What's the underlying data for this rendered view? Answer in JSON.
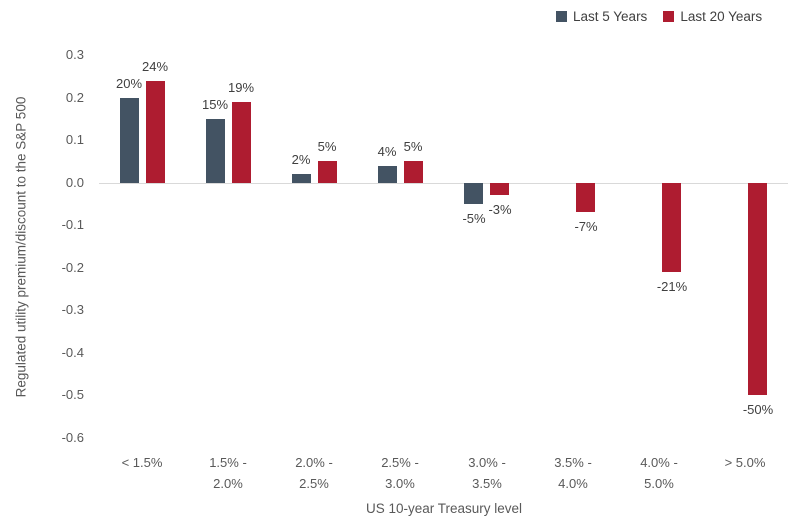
{
  "legend": {
    "items": [
      {
        "label": "Last 5 Years",
        "color": "#435363"
      },
      {
        "label": "Last 20 Years",
        "color": "#AE1C30"
      }
    ]
  },
  "y_axis": {
    "title": "Regulated utility premium/discount to the S&P 500",
    "tick_labels": [
      "0.3",
      "0.2",
      "0.1",
      "0.0",
      "-0.1",
      "-0.2",
      "-0.3",
      "-0.4",
      "-0.5",
      "-0.6"
    ]
  },
  "x_axis": {
    "title": "US 10-year Treasury level"
  },
  "colors": {
    "baseline": "#d9d9d9",
    "tick_text": "#595959",
    "data_label_text": "#404040"
  },
  "chart_data": {
    "type": "bar",
    "title": "",
    "xlabel": "US 10-year Treasury level",
    "ylabel": "Regulated utility premium/discount to the S&P 500",
    "ylim": [
      -0.6,
      0.3
    ],
    "y_tick_step": 0.1,
    "grid": "zero-baseline-only",
    "legend_position": "top-right",
    "categories": [
      "< 1.5%",
      "1.5% - 2.0%",
      "2.0% - 2.5%",
      "2.5% - 3.0%",
      "3.0% - 3.5%",
      "3.5% - 4.0%",
      "4.0% - 5.0%",
      "> 5.0%"
    ],
    "category_label_lines": [
      [
        "< 1.5%"
      ],
      [
        "1.5% -",
        "2.0%"
      ],
      [
        "2.0% -",
        "2.5%"
      ],
      [
        "2.5% -",
        "3.0%"
      ],
      [
        "3.0% -",
        "3.5%"
      ],
      [
        "3.5% -",
        "4.0%"
      ],
      [
        "4.0% -",
        "5.0%"
      ],
      [
        "> 5.0%"
      ]
    ],
    "series": [
      {
        "name": "Last 5 Years",
        "color": "#435363",
        "values": [
          0.2,
          0.15,
          0.02,
          0.04,
          -0.05,
          null,
          null,
          null
        ],
        "data_labels": [
          "20%",
          "15%",
          "2%",
          "4%",
          "-5%",
          null,
          null,
          null
        ]
      },
      {
        "name": "Last 20 Years",
        "color": "#AE1C30",
        "values": [
          0.24,
          0.19,
          0.05,
          0.05,
          -0.03,
          -0.07,
          -0.21,
          -0.5
        ],
        "data_labels": [
          "24%",
          "19%",
          "5%",
          "5%",
          "-3%",
          "-7%",
          "-21%",
          "-50%"
        ]
      }
    ]
  }
}
